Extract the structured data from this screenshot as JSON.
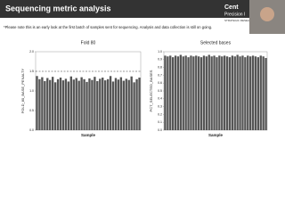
{
  "title": "Sequencing metric analysis",
  "note": "*Please note this is an early look at the first batch of samples sent for sequencing. Analysis and data collection is still on going.",
  "logo": [
    "Cent",
    "Precision I",
    "STRATEGIC RESEARC"
  ],
  "chart_data": [
    {
      "type": "bar",
      "title": "Fold 80",
      "y_label": "FOLD_80_BASE_PENALTY",
      "x_label": "Sample",
      "color": "#555555",
      "values": [
        1.38,
        1.3,
        1.35,
        1.25,
        1.33,
        1.28,
        1.36,
        1.22,
        1.3,
        1.34,
        1.27,
        1.31,
        1.24,
        1.37,
        1.29,
        1.33,
        1.26,
        1.35,
        1.3,
        1.23,
        1.32,
        1.28,
        1.36,
        1.25,
        1.31,
        1.34,
        1.27,
        1.3,
        1.38,
        1.24,
        1.33,
        1.29,
        1.35,
        1.26,
        1.31,
        1.28,
        1.37,
        1.22,
        1.3,
        1.34
      ],
      "reference_line": 1.5,
      "ylim": [
        0,
        2
      ],
      "yticks": [
        {
          "value": 0,
          "label": "0.0"
        },
        0.5,
        {
          "value": 1,
          "label": "1.0"
        },
        1.5,
        {
          "value": 2,
          "label": "2.0"
        }
      ]
    },
    {
      "type": "bar",
      "title": "Selected bases",
      "y_label": "PCT_SELECTED_BASES",
      "x_label": "Sample",
      "color": "#555555",
      "values": [
        0.95,
        0.94,
        0.95,
        0.93,
        0.95,
        0.94,
        0.96,
        0.94,
        0.95,
        0.93,
        0.95,
        0.94,
        0.95,
        0.94,
        0.93,
        0.95,
        0.94,
        0.96,
        0.94,
        0.95,
        0.93,
        0.95,
        0.94,
        0.95,
        0.94,
        0.93,
        0.95,
        0.94,
        0.96,
        0.94,
        0.95,
        0.93,
        0.95,
        0.94,
        0.95,
        0.94,
        0.93,
        0.95,
        0.94,
        0.92
      ],
      "ylim": [
        0,
        1
      ],
      "yticks": [
        {
          "value": 0,
          "label": "0.0"
        },
        0.1,
        0.2,
        0.3,
        0.4,
        0.5,
        0.6,
        0.7,
        0.8,
        0.9,
        {
          "value": 1,
          "label": "1.0"
        }
      ]
    }
  ]
}
